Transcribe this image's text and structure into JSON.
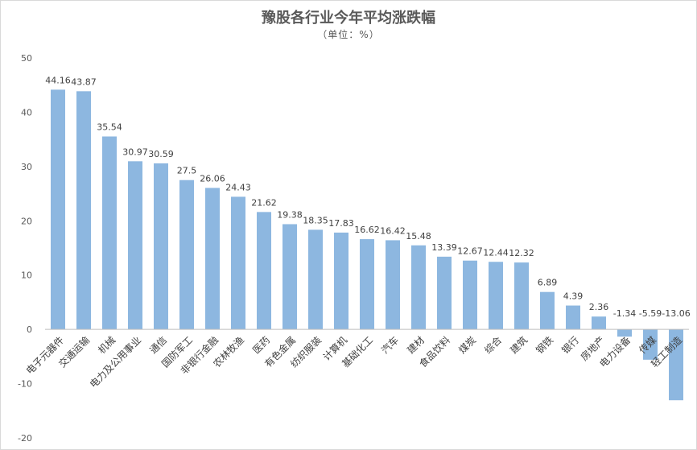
{
  "chart_data": {
    "type": "bar",
    "title": "豫股各行业今年平均涨跌幅",
    "subtitle": "（单位：%）",
    "xlabel": "",
    "ylabel": "",
    "ylim": [
      -20,
      50
    ],
    "yticks": [
      50,
      40,
      30,
      20,
      10,
      0,
      -10,
      -20
    ],
    "grid": false,
    "bar_color": "#8db7e0",
    "categories": [
      "电子元器件",
      "交通运输",
      "机械",
      "电力及公用事业",
      "通信",
      "国防军工",
      "非银行金融",
      "农林牧渔",
      "医药",
      "有色金属",
      "纺织服装",
      "计算机",
      "基础化工",
      "汽车",
      "建材",
      "食品饮料",
      "煤炭",
      "综合",
      "建筑",
      "钢铁",
      "银行",
      "房地产",
      "电力设备",
      "传媒",
      "轻工制造"
    ],
    "values": [
      44.16,
      43.87,
      35.54,
      30.97,
      30.59,
      27.5,
      26.06,
      24.43,
      21.62,
      19.38,
      18.35,
      17.83,
      16.62,
      16.42,
      15.48,
      13.39,
      12.67,
      12.44,
      12.32,
      6.89,
      4.39,
      2.36,
      -1.34,
      -5.59,
      -13.06
    ],
    "data_labels": [
      "44.16",
      "43.87",
      "35.54",
      "30.97",
      "30.59",
      "27.5",
      "26.06",
      "24.43",
      "21.62",
      "19.38",
      "18.35",
      "17.83",
      "16.62",
      "16.42",
      "15.48",
      "13.39",
      "12.67",
      "12.44",
      "12.32",
      "6.89",
      "4.39",
      "2.36",
      "-1.34",
      "-5.59",
      "-13.06"
    ]
  }
}
